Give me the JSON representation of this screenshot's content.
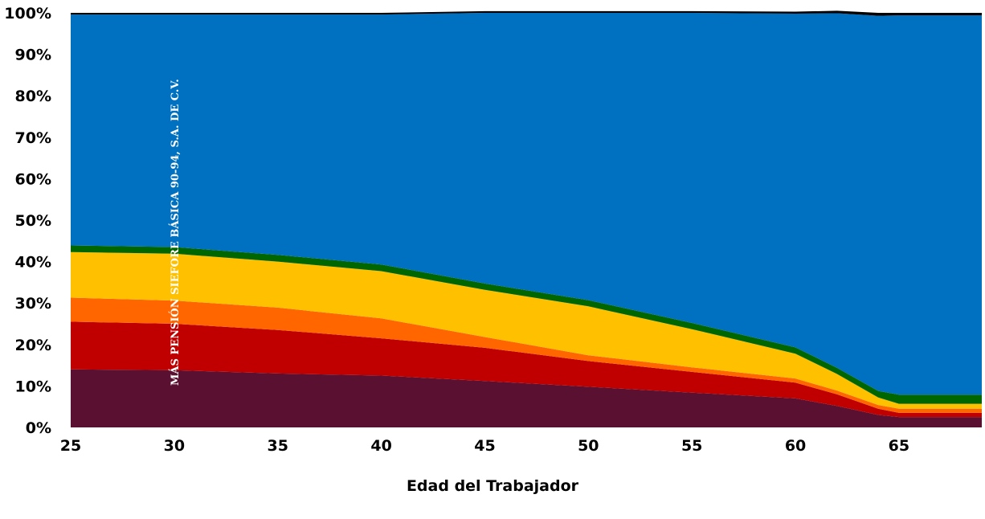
{
  "chart_data": {
    "type": "area",
    "stacked": true,
    "percent": true,
    "xlabel": "Edad del Trabajador",
    "ylabel": "",
    "xlim": [
      25,
      69
    ],
    "ylim": [
      0,
      100
    ],
    "x_ticks": [
      "25",
      "30",
      "35",
      "40",
      "45",
      "50",
      "55",
      "60",
      "65"
    ],
    "y_ticks": [
      "0%",
      "10%",
      "20%",
      "30%",
      "40%",
      "50%",
      "60%",
      "70%",
      "80%",
      "90%",
      "100%"
    ],
    "grid": false,
    "legend": "none",
    "annotation": "MÁS PENSIÓN SIEFORE BÁSICA 90-94, S.A. DE C.V.",
    "x": [
      25,
      30,
      35,
      40,
      45,
      50,
      55,
      60,
      62,
      64,
      65,
      69
    ],
    "series": [
      {
        "color": "#5a1030",
        "values": [
          14,
          13.8,
          13,
          12.5,
          11.2,
          9.8,
          8.4,
          7,
          5.2,
          3.0,
          2.5,
          2.5
        ]
      },
      {
        "color": "#c00000",
        "values": [
          11.5,
          11.2,
          10.5,
          9,
          8,
          6.2,
          5,
          3.8,
          2.8,
          1.5,
          1.0,
          1.0
        ]
      },
      {
        "color": "#ff6600",
        "values": [
          5.8,
          5.6,
          5.4,
          4.8,
          2.6,
          1.4,
          1.1,
          1.0,
          0.9,
          0.9,
          1.0,
          1.0
        ]
      },
      {
        "color": "#ffc000",
        "values": [
          11,
          11.3,
          11.1,
          11.4,
          11.4,
          11.8,
          9.2,
          6.0,
          4.0,
          1.8,
          1.2,
          1.2
        ]
      },
      {
        "color": "#006600",
        "values": [
          1.6,
          1.6,
          1.6,
          1.6,
          1.5,
          1.5,
          1.5,
          1.5,
          1.5,
          1.6,
          2.2,
          2.2
        ]
      },
      {
        "color": "#0070c0",
        "values": [
          55.7,
          56.1,
          58,
          60.3,
          65.3,
          69.3,
          74.8,
          80.5,
          85.5,
          90.5,
          91.5,
          91.5
        ]
      },
      {
        "color": "#000000",
        "values": [
          0.4,
          0.4,
          0.4,
          0.4,
          0.4,
          0.4,
          0.4,
          0.5,
          0.6,
          0.7,
          0.6,
          0.6
        ]
      }
    ]
  }
}
